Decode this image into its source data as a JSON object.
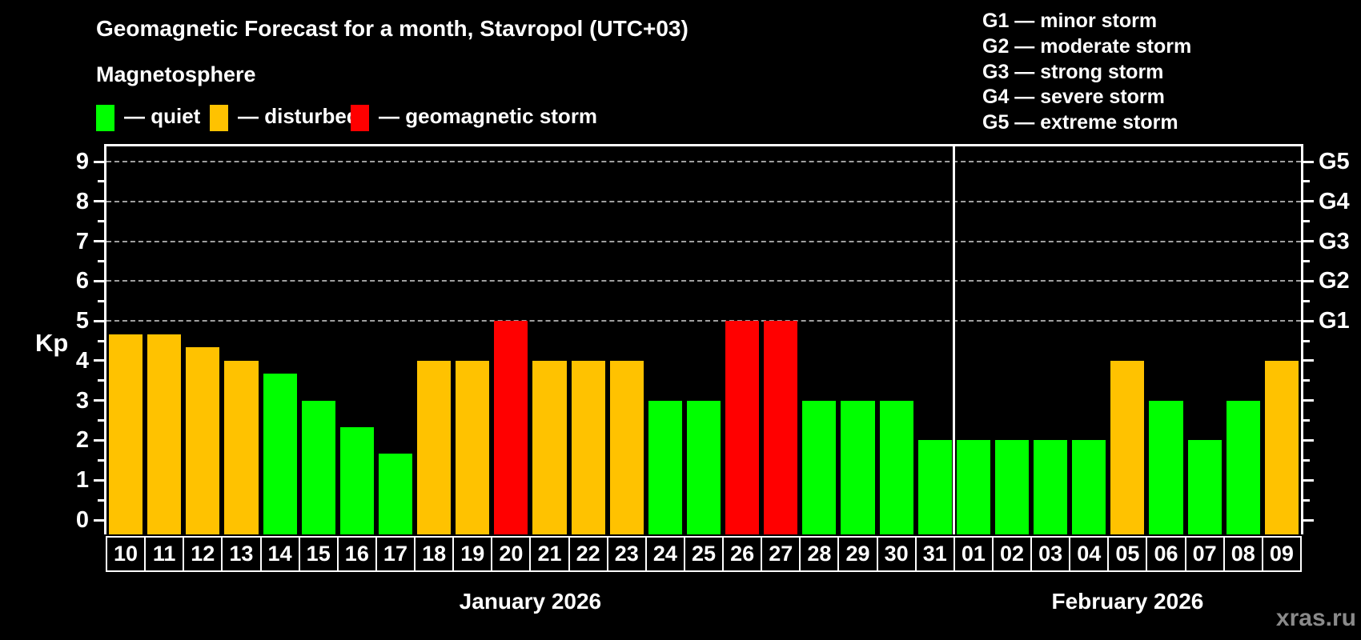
{
  "header": {
    "title": "Geomagnetic Forecast for a month, Stavropol (UTC+03)",
    "subtitle": "Magnetosphere",
    "legend": [
      {
        "status": "quiet",
        "label": "— quiet"
      },
      {
        "status": "disturbed",
        "label": "— disturbed"
      },
      {
        "status": "storm",
        "label": "— geomagnetic storm"
      }
    ]
  },
  "storm_scale_legend": [
    "G1 — minor storm",
    "G2 — moderate storm",
    "G3 — strong storm",
    "G4 — severe storm",
    "G5 — extreme storm"
  ],
  "colors": {
    "quiet": "#00ff00",
    "disturbed": "#ffc200",
    "storm": "#ff0000",
    "gridline": "#a0a0a0",
    "watermark": "#8a8a8a",
    "background": "#000000",
    "axis": "#ffffff"
  },
  "chart_data": {
    "type": "bar",
    "title": "Geomagnetic Forecast for a month, Stavropol (UTC+03)",
    "ylabel": "Kp",
    "ylim": [
      0,
      9
    ],
    "yticks": [
      0,
      1,
      2,
      3,
      4,
      5,
      6,
      7,
      8,
      9
    ],
    "gridlines_at": [
      5,
      6,
      7,
      8,
      9
    ],
    "grid": "dashed-horizontal",
    "legend_position": "top",
    "right_axis_labels": [
      {
        "kp": 5,
        "label": "G1"
      },
      {
        "kp": 6,
        "label": "G2"
      },
      {
        "kp": 7,
        "label": "G3"
      },
      {
        "kp": 8,
        "label": "G4"
      },
      {
        "kp": 9,
        "label": "G5"
      }
    ],
    "months": [
      {
        "label": "January 2026",
        "days": [
          {
            "day": "10",
            "kp": 4.67,
            "status": "disturbed"
          },
          {
            "day": "11",
            "kp": 4.67,
            "status": "disturbed"
          },
          {
            "day": "12",
            "kp": 4.33,
            "status": "disturbed"
          },
          {
            "day": "13",
            "kp": 4.0,
            "status": "disturbed"
          },
          {
            "day": "14",
            "kp": 3.67,
            "status": "quiet"
          },
          {
            "day": "15",
            "kp": 3.0,
            "status": "quiet"
          },
          {
            "day": "16",
            "kp": 2.33,
            "status": "quiet"
          },
          {
            "day": "17",
            "kp": 1.67,
            "status": "quiet"
          },
          {
            "day": "18",
            "kp": 4.0,
            "status": "disturbed"
          },
          {
            "day": "19",
            "kp": 4.0,
            "status": "disturbed"
          },
          {
            "day": "20",
            "kp": 5.0,
            "status": "storm"
          },
          {
            "day": "21",
            "kp": 4.0,
            "status": "disturbed"
          },
          {
            "day": "22",
            "kp": 4.0,
            "status": "disturbed"
          },
          {
            "day": "23",
            "kp": 4.0,
            "status": "disturbed"
          },
          {
            "day": "24",
            "kp": 3.0,
            "status": "quiet"
          },
          {
            "day": "25",
            "kp": 3.0,
            "status": "quiet"
          },
          {
            "day": "26",
            "kp": 5.0,
            "status": "storm"
          },
          {
            "day": "27",
            "kp": 5.0,
            "status": "storm"
          },
          {
            "day": "28",
            "kp": 3.0,
            "status": "quiet"
          },
          {
            "day": "29",
            "kp": 3.0,
            "status": "quiet"
          },
          {
            "day": "30",
            "kp": 3.0,
            "status": "quiet"
          },
          {
            "day": "31",
            "kp": 2.0,
            "status": "quiet"
          }
        ]
      },
      {
        "label": "February 2026",
        "days": [
          {
            "day": "01",
            "kp": 2.0,
            "status": "quiet"
          },
          {
            "day": "02",
            "kp": 2.0,
            "status": "quiet"
          },
          {
            "day": "03",
            "kp": 2.0,
            "status": "quiet"
          },
          {
            "day": "04",
            "kp": 2.0,
            "status": "quiet"
          },
          {
            "day": "05",
            "kp": 4.0,
            "status": "disturbed"
          },
          {
            "day": "06",
            "kp": 3.0,
            "status": "quiet"
          },
          {
            "day": "07",
            "kp": 2.0,
            "status": "quiet"
          },
          {
            "day": "08",
            "kp": 3.0,
            "status": "quiet"
          },
          {
            "day": "09",
            "kp": 4.0,
            "status": "disturbed"
          }
        ]
      }
    ]
  },
  "watermark": "xras.ru"
}
